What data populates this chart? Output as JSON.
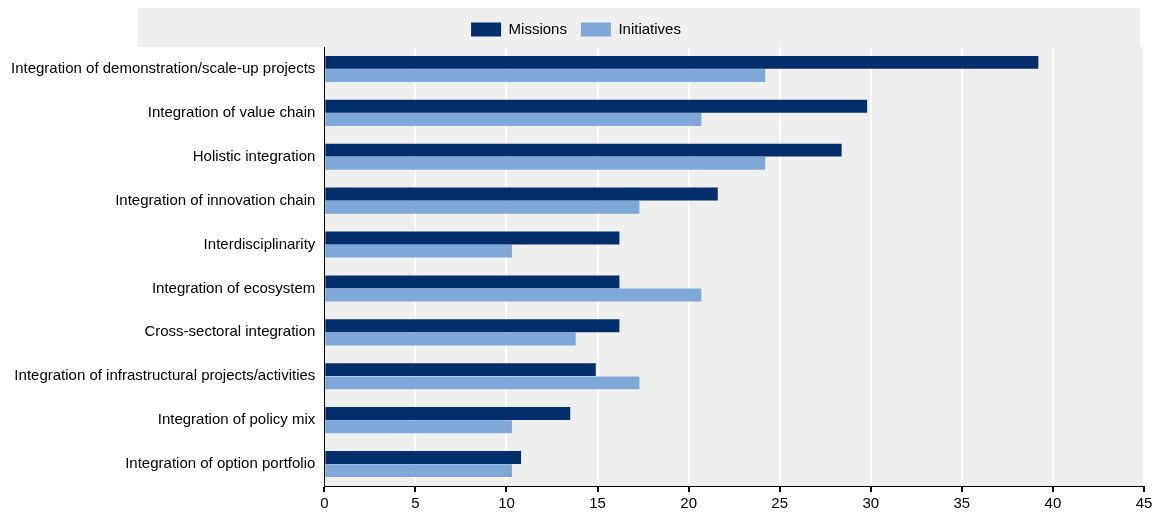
{
  "chart_data": {
    "type": "bar",
    "orientation": "horizontal",
    "categories": [
      "Integration of demonstration/scale-up projects",
      "Integration of value chain",
      "Holistic integration",
      "Integration of innovation chain",
      "Interdisciplinarity",
      "Integration of ecosystem",
      "Cross-sectoral integration",
      "Integration of infrastructural projects/activities",
      "Integration of policy mix",
      "Integration of option portfolio"
    ],
    "series": [
      {
        "name": "Missions",
        "color": "#002f6c",
        "values": [
          39.2,
          29.8,
          28.4,
          21.6,
          16.2,
          16.2,
          16.2,
          14.9,
          13.5,
          10.8
        ]
      },
      {
        "name": "Initiatives",
        "color": "#7fa8d9",
        "values": [
          24.2,
          20.7,
          24.2,
          17.3,
          10.3,
          20.7,
          13.8,
          17.3,
          10.3,
          10.3
        ]
      }
    ],
    "xlim": [
      0,
      45
    ],
    "xticks": [
      0,
      5,
      10,
      15,
      20,
      25,
      30,
      35,
      40,
      45
    ],
    "grid": "x",
    "legend": "top"
  }
}
